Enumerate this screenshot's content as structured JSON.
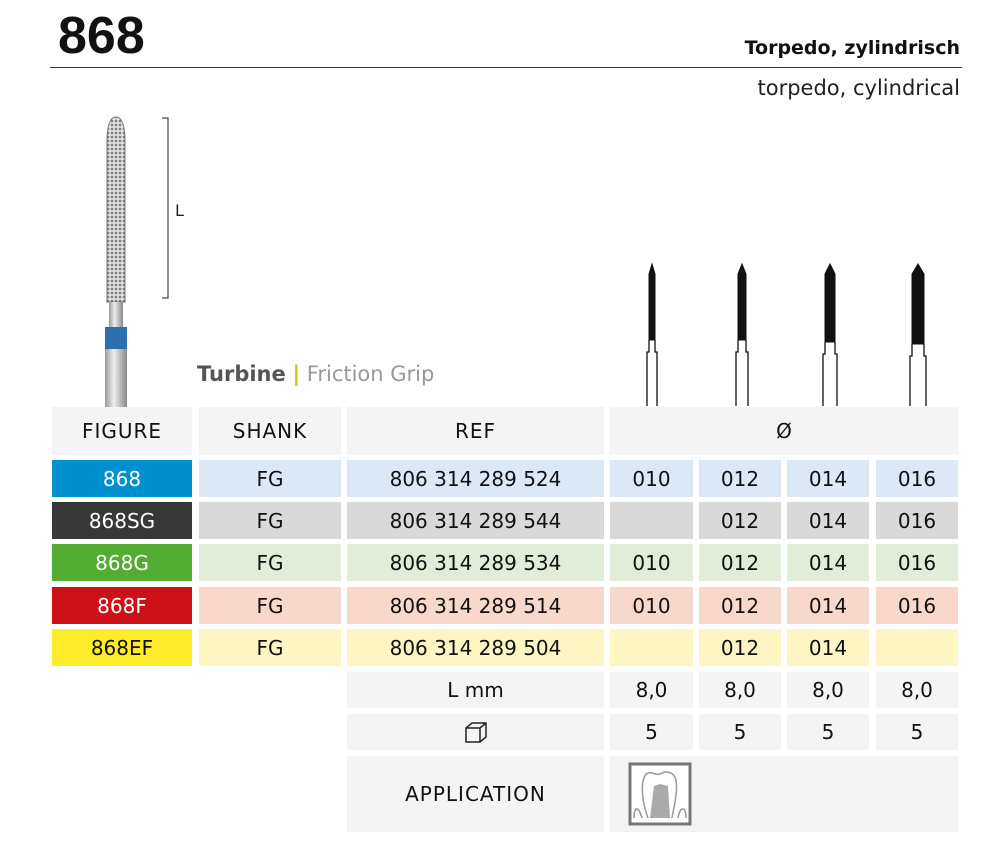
{
  "header": {
    "number": "868",
    "title_de": "Torpedo, zylindrisch",
    "title_en": "torpedo, cylindrical"
  },
  "figure": {
    "length_label": "L"
  },
  "type": {
    "turbine": "Turbine",
    "separator": "|",
    "grip": "Friction Grip"
  },
  "table": {
    "headers": {
      "figure": "FIGURE",
      "shank": "SHANK",
      "ref": "REF",
      "diameter": "Ø"
    },
    "rows": [
      {
        "figure": "868",
        "shank": "FG",
        "ref": "806 314 289 524",
        "sizes": [
          "010",
          "012",
          "014",
          "016"
        ],
        "color": "#0090d0",
        "light": "#dde8f7",
        "text": "#fff"
      },
      {
        "figure": "868SG",
        "shank": "FG",
        "ref": "806 314 289 544",
        "sizes": [
          "",
          "012",
          "014",
          "016"
        ],
        "color": "#383838",
        "light": "#d9d9d9",
        "text": "#fff"
      },
      {
        "figure": "868G",
        "shank": "FG",
        "ref": "806 314 289 534",
        "sizes": [
          "010",
          "012",
          "014",
          "016"
        ],
        "color": "#52ad32",
        "light": "#e1ecd9",
        "text": "#fff"
      },
      {
        "figure": "868F",
        "shank": "FG",
        "ref": "806 314 289 514",
        "sizes": [
          "010",
          "012",
          "014",
          "016"
        ],
        "color": "#cc1118",
        "light": "#f8d8cd",
        "text": "#fff"
      },
      {
        "figure": "868EF",
        "shank": "FG",
        "ref": "806 314 289 504",
        "sizes": [
          "",
          "012",
          "014",
          ""
        ],
        "color": "#ffeb2a",
        "light": "#fdf6c3",
        "text": "#111"
      }
    ],
    "length": {
      "label": "L mm",
      "values": [
        "8,0",
        "8,0",
        "8,0",
        "8,0"
      ]
    },
    "pack": {
      "icon": "package-box-icon",
      "values": [
        "5",
        "5",
        "5",
        "5"
      ]
    },
    "application": {
      "label": "APPLICATION",
      "icon": "tooth-crown-preparation-icon"
    }
  }
}
